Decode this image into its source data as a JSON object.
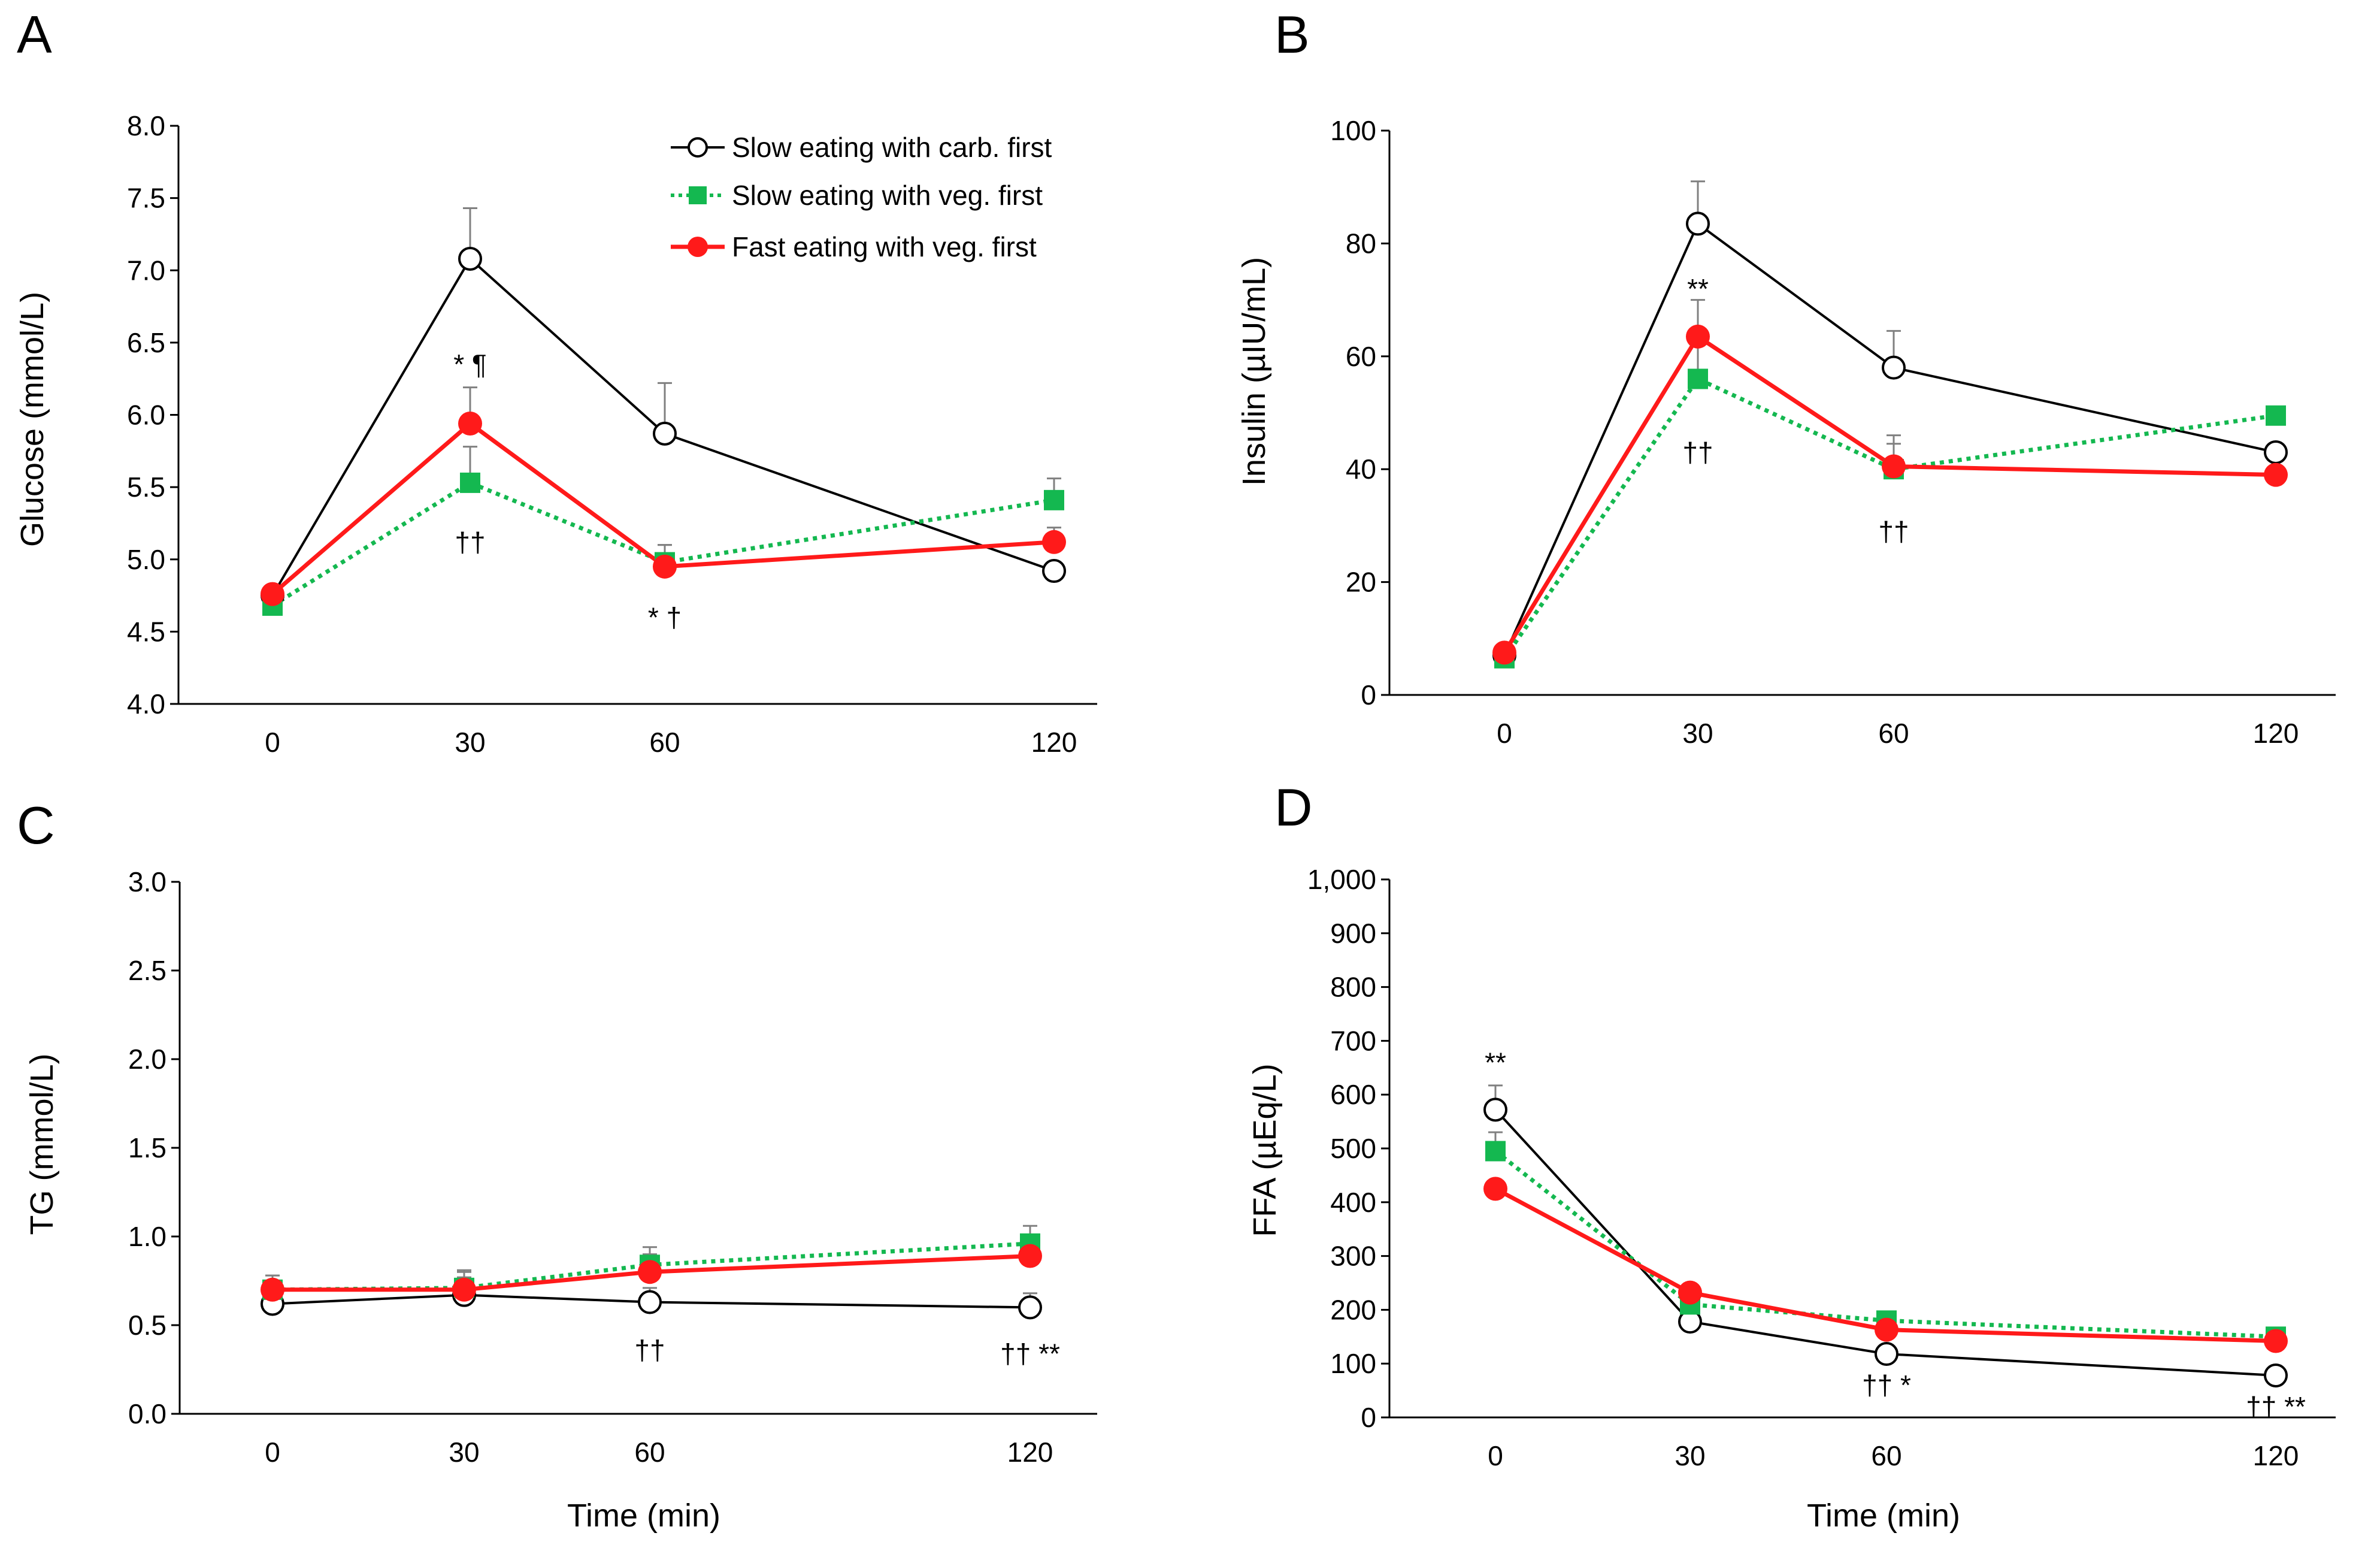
{
  "colors": {
    "carb_first": "#000000",
    "veg_first_slow": "#14b850",
    "veg_first_fast": "#ff1a1a",
    "error_bar": "#808080"
  },
  "legend": [
    {
      "key": "carb",
      "label": "Slow eating with carb. first",
      "marker": "open-circle",
      "line": "solid-black"
    },
    {
      "key": "slow_veg",
      "label": "Slow eating with veg. first",
      "marker": "square",
      "line": "dotted-green"
    },
    {
      "key": "fast_veg",
      "label": "Fast eating with veg. first",
      "marker": "filled-circle",
      "line": "solid-red"
    }
  ],
  "chart_data": [
    {
      "panel": "A",
      "type": "line",
      "x": [
        0,
        30,
        60,
        120
      ],
      "xticks": [
        "0",
        "30",
        "60",
        "120"
      ],
      "xlabel": "",
      "ylabel": "Glucose (mmol/L)",
      "ylim": [
        4.0,
        8.0
      ],
      "yticks": [
        "4.0",
        "4.5",
        "5.0",
        "5.5",
        "6.0",
        "6.5",
        "7.0",
        "7.5",
        "8.0"
      ],
      "series": [
        {
          "name": "Slow eating with carb. first",
          "values": [
            4.75,
            7.08,
            5.87,
            4.92
          ],
          "errors": [
            0,
            0.35,
            0.35,
            0
          ]
        },
        {
          "name": "Slow eating with veg. first",
          "values": [
            4.68,
            5.53,
            4.98,
            5.41
          ],
          "errors": [
            0,
            0.25,
            0.12,
            0.15
          ]
        },
        {
          "name": "Fast eating with veg. first",
          "values": [
            4.76,
            5.94,
            4.95,
            5.12
          ],
          "errors": [
            0,
            0.25,
            0.15,
            0.1
          ]
        }
      ],
      "annotations": [
        {
          "x": 30,
          "y": 6.35,
          "text": "* ¶"
        },
        {
          "x": 30,
          "y": 5.12,
          "text": "††"
        },
        {
          "x": 60,
          "y": 4.6,
          "text": "* †"
        }
      ]
    },
    {
      "panel": "B",
      "type": "line",
      "x": [
        0,
        30,
        60,
        120
      ],
      "xticks": [
        "0",
        "30",
        "60",
        "120"
      ],
      "xlabel": "",
      "ylabel": "Insulin (µIU/mL)",
      "ylim": [
        0,
        100
      ],
      "yticks": [
        "0",
        "20",
        "40",
        "60",
        "80",
        "100"
      ],
      "series": [
        {
          "name": "Slow eating with carb. first",
          "values": [
            7,
            83.5,
            58,
            43
          ],
          "errors": [
            0,
            7.5,
            6.5,
            0
          ]
        },
        {
          "name": "Slow eating with veg. first",
          "values": [
            6.5,
            56,
            40,
            49.5
          ],
          "errors": [
            0,
            7.5,
            4.5,
            0
          ]
        },
        {
          "name": "Fast eating with veg. first",
          "values": [
            7.5,
            63.5,
            40.5,
            39
          ],
          "errors": [
            0,
            6.5,
            5.5,
            0
          ]
        }
      ],
      "annotations": [
        {
          "x": 30,
          "y": 72,
          "text": "**"
        },
        {
          "x": 30,
          "y": 43,
          "text": "††"
        },
        {
          "x": 60,
          "y": 29,
          "text": "††"
        }
      ]
    },
    {
      "panel": "C",
      "type": "line",
      "x": [
        0,
        30,
        60,
        120
      ],
      "xticks": [
        "0",
        "30",
        "60",
        "120"
      ],
      "xlabel": "Time (min)",
      "ylabel": "TG (mmol/L)",
      "ylim": [
        0.0,
        3.0
      ],
      "yticks": [
        "0.0",
        "0.5",
        "1.0",
        "1.5",
        "2.0",
        "2.5",
        "3.0"
      ],
      "series": [
        {
          "name": "Slow eating with carb. first",
          "values": [
            0.62,
            0.67,
            0.63,
            0.6
          ],
          "errors": [
            0.1,
            0.1,
            0.08,
            0.08
          ]
        },
        {
          "name": "Slow eating with veg. first",
          "values": [
            0.7,
            0.71,
            0.84,
            0.96
          ],
          "errors": [
            0.08,
            0.1,
            0.1,
            0.1
          ]
        },
        {
          "name": "Fast eating with veg. first",
          "values": [
            0.7,
            0.7,
            0.8,
            0.89
          ],
          "errors": [
            0.08,
            0.1,
            0.1,
            0.1
          ]
        }
      ],
      "annotations": [
        {
          "x": 60,
          "y": 0.36,
          "text": "††"
        },
        {
          "x": 120,
          "y": 0.34,
          "text": "†† **"
        }
      ]
    },
    {
      "panel": "D",
      "type": "line",
      "x": [
        0,
        30,
        60,
        120
      ],
      "xticks": [
        "0",
        "30",
        "60",
        "120"
      ],
      "xlabel": "Time (min)",
      "ylabel": "FFA (µEq/L)",
      "ylim": [
        0,
        1000
      ],
      "yticks": [
        "0",
        "100",
        "200",
        "300",
        "400",
        "500",
        "600",
        "700",
        "800",
        "900",
        "1,000"
      ],
      "series": [
        {
          "name": "Slow eating with carb. first",
          "values": [
            572,
            178,
            118,
            78
          ],
          "errors": [
            45,
            10,
            10,
            8
          ]
        },
        {
          "name": "Slow eating with veg. first",
          "values": [
            495,
            210,
            180,
            150
          ],
          "errors": [
            35,
            10,
            10,
            8
          ]
        },
        {
          "name": "Fast eating with veg. first",
          "values": [
            425,
            232,
            163,
            142
          ],
          "errors": [
            0,
            0,
            0,
            0
          ]
        }
      ],
      "annotations": [
        {
          "x": 0,
          "y": 660,
          "text": "**"
        },
        {
          "x": 60,
          "y": 60,
          "text": "†† *"
        },
        {
          "x": 120,
          "y": 20,
          "text": "†† **"
        }
      ]
    }
  ]
}
